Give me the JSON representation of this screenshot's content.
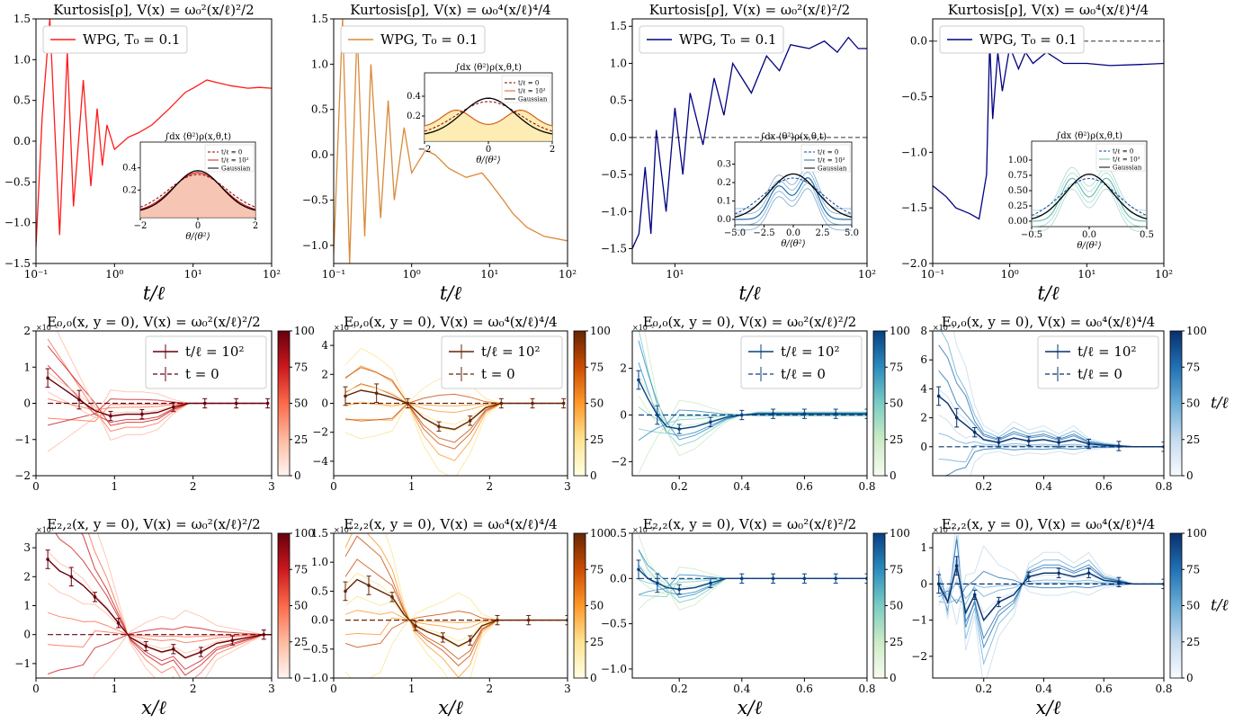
{
  "chart_data": [
    {
      "id": "k1",
      "type": "line",
      "title": "Kurtosis[ρ], V(x) = ω₀²(x/ℓ)²/2",
      "xlabel": "t/ℓ",
      "xscale": "log",
      "xlim": [
        0.1,
        100
      ],
      "ylim": [
        -1.5,
        1.5
      ],
      "xticks": [
        {
          "v": 0.1,
          "label": "10⁻¹"
        },
        {
          "v": 1,
          "label": "10⁰"
        },
        {
          "v": 10,
          "label": "10¹"
        },
        {
          "v": 100,
          "label": "10²"
        }
      ],
      "yticks": [
        {
          "v": -1.5,
          "label": "−1.5"
        },
        {
          "v": -1.0,
          "label": "−1.0"
        },
        {
          "v": -0.5,
          "label": "−0.5"
        },
        {
          "v": 0,
          "label": "0.0"
        },
        {
          "v": 0.5,
          "label": "0.5"
        },
        {
          "v": 1.0,
          "label": "1.0"
        },
        {
          "v": 1.5,
          "label": "1.5"
        }
      ],
      "legend": "WPG, T₀ = 0.1",
      "color": "#ff1a1a",
      "x": [
        0.1,
        0.12,
        0.15,
        0.2,
        0.25,
        0.3,
        0.4,
        0.5,
        0.6,
        0.7,
        0.8,
        1,
        1.5,
        2,
        3,
        5,
        8,
        10,
        15,
        20,
        30,
        50,
        70,
        100
      ],
      "y": [
        -1.3,
        0.3,
        1.5,
        -1.15,
        1.1,
        -0.8,
        0.75,
        -0.55,
        0.4,
        -0.3,
        0.2,
        -0.1,
        0.05,
        0.1,
        0.2,
        0.4,
        0.6,
        0.65,
        0.75,
        0.72,
        0.68,
        0.65,
        0.66,
        0.65
      ]
    },
    {
      "id": "k2",
      "type": "line",
      "title": "Kurtosis[ρ], V(x) = ω₀⁴(x/ℓ)⁴/4",
      "xlabel": "t/ℓ",
      "xscale": "log",
      "xlim": [
        0.1,
        100
      ],
      "ylim": [
        -1.2,
        1.5
      ],
      "xticks": [
        {
          "v": 0.1,
          "label": "10⁻¹"
        },
        {
          "v": 1,
          "label": "10⁰"
        },
        {
          "v": 10,
          "label": "10¹"
        },
        {
          "v": 100,
          "label": "10²"
        }
      ],
      "yticks": [
        {
          "v": -1.0,
          "label": "−1.0"
        },
        {
          "v": -0.5,
          "label": "−0.5"
        },
        {
          "v": 0,
          "label": "0.0"
        },
        {
          "v": 0.5,
          "label": "0.5"
        },
        {
          "v": 1.0,
          "label": "1.0"
        },
        {
          "v": 1.5,
          "label": "1.5"
        }
      ],
      "legend": "WPG, T₀ = 0.1",
      "color": "#d98a3a",
      "x": [
        0.1,
        0.13,
        0.16,
        0.2,
        0.25,
        0.3,
        0.4,
        0.5,
        0.6,
        0.8,
        1,
        1.5,
        2,
        3,
        5,
        8,
        10,
        15,
        20,
        30,
        50,
        100
      ],
      "y": [
        -1.1,
        1.5,
        -1.2,
        1.4,
        -0.9,
        1.0,
        -0.7,
        0.6,
        -0.5,
        0.3,
        -0.2,
        0.05,
        0.0,
        -0.15,
        -0.25,
        -0.2,
        -0.3,
        -0.5,
        -0.65,
        -0.8,
        -0.9,
        -0.95
      ]
    },
    {
      "id": "k3",
      "type": "line",
      "title": "Kurtosis[ρ], V(x) = ω₀²(x/ℓ)²/2",
      "xlabel": "t/ℓ",
      "xscale": "log",
      "xlim": [
        6,
        100
      ],
      "ylim": [
        -1.7,
        1.6
      ],
      "xticks": [
        {
          "v": 10,
          "label": "10¹"
        },
        {
          "v": 100,
          "label": "10²"
        }
      ],
      "yticks": [
        {
          "v": -1.5,
          "label": "−1.5"
        },
        {
          "v": -1.0,
          "label": "−1.0"
        },
        {
          "v": -0.5,
          "label": "−0.5"
        },
        {
          "v": 0,
          "label": "0.0"
        },
        {
          "v": 0.5,
          "label": "0.5"
        },
        {
          "v": 1.0,
          "label": "1.0"
        },
        {
          "v": 1.5,
          "label": "1.5"
        }
      ],
      "legend": "WPG, T₀ = 0.1",
      "color": "#000080",
      "dashed_zero": true,
      "x": [
        6,
        6.5,
        7,
        7.5,
        8,
        9,
        10,
        11,
        12,
        14,
        16,
        18,
        20,
        25,
        30,
        35,
        40,
        50,
        60,
        70,
        80,
        90,
        100
      ],
      "y": [
        -1.5,
        -1.3,
        -0.4,
        -1.3,
        0.1,
        -1.0,
        0.4,
        -0.5,
        0.6,
        -0.1,
        0.8,
        0.3,
        1.0,
        0.6,
        1.1,
        0.9,
        1.25,
        1.2,
        1.3,
        1.15,
        1.35,
        1.2,
        1.2
      ]
    },
    {
      "id": "k4",
      "type": "line",
      "title": "Kurtosis[ρ], V(x) = ω₀⁴(x/ℓ)⁴/4",
      "xlabel": "t/ℓ",
      "xscale": "log",
      "xlim": [
        0.1,
        100
      ],
      "ylim": [
        -2.0,
        0.2
      ],
      "xticks": [
        {
          "v": 0.1,
          "label": "10⁻¹"
        },
        {
          "v": 1,
          "label": "10⁰"
        },
        {
          "v": 10,
          "label": "10¹"
        },
        {
          "v": 100,
          "label": "10²"
        }
      ],
      "yticks": [
        {
          "v": -2.0,
          "label": "−2.0"
        },
        {
          "v": -1.5,
          "label": "−1.5"
        },
        {
          "v": -1.0,
          "label": "−1.0"
        },
        {
          "v": -0.5,
          "label": "−0.5"
        },
        {
          "v": 0,
          "label": "0.0"
        }
      ],
      "legend": "WPG, T₀ = 0.1",
      "color": "#000080",
      "dashed_zero": true,
      "x": [
        0.1,
        0.15,
        0.2,
        0.3,
        0.4,
        0.5,
        0.55,
        0.6,
        0.7,
        0.8,
        1,
        1.3,
        1.6,
        2,
        3,
        5,
        10,
        20,
        50,
        100
      ],
      "y": [
        -1.3,
        -1.4,
        -1.5,
        -1.55,
        -1.6,
        -1.2,
        0.0,
        -0.7,
        -0.1,
        -0.45,
        -0.05,
        -0.25,
        -0.1,
        -0.2,
        -0.1,
        -0.2,
        -0.2,
        -0.22,
        -0.21,
        -0.2
      ]
    },
    {
      "id": "e1",
      "type": "line",
      "title": "E₀,₀(x, y = 0), V(x) = ω₀²(x/ℓ)²/2",
      "xlim": [
        0,
        3
      ],
      "ylim": [
        -2,
        2
      ],
      "multiplier": "×10⁻²",
      "xticks": [
        {
          "v": 0,
          "label": "0"
        },
        {
          "v": 1,
          "label": "1"
        },
        {
          "v": 2,
          "label": "2"
        },
        {
          "v": 3,
          "label": "3"
        }
      ],
      "yticks": [
        {
          "v": -2,
          "label": "−2"
        },
        {
          "v": -1,
          "label": "−1"
        },
        {
          "v": 0,
          "label": "0"
        },
        {
          "v": 1,
          "label": "1"
        },
        {
          "v": 2,
          "label": "2"
        }
      ],
      "cmap": "reds",
      "cbticks": [
        "0",
        "25",
        "50",
        "75",
        "100"
      ],
      "legend": [
        "t/ℓ = 10²",
        "t = 0"
      ],
      "x": [
        0.15,
        0.35,
        0.55,
        0.75,
        0.95,
        1.15,
        1.35,
        1.55,
        1.75,
        1.95,
        2.15,
        2.35,
        2.55,
        2.75,
        2.95
      ],
      "y": [
        0.7,
        0.4,
        0.1,
        -0.2,
        -0.35,
        -0.3,
        -0.3,
        -0.25,
        -0.1,
        0.0,
        0.0,
        0.0,
        0.0,
        0.0,
        0.0
      ]
    },
    {
      "id": "e2",
      "type": "line",
      "title": "E₀,₀(x, y = 0), V(x) = ω₀⁴(x/ℓ)⁴/4",
      "xlim": [
        0,
        3
      ],
      "ylim": [
        -5,
        5
      ],
      "multiplier": "×10⁻³",
      "xticks": [
        {
          "v": 0,
          "label": "0"
        },
        {
          "v": 1,
          "label": "1"
        },
        {
          "v": 2,
          "label": "2"
        },
        {
          "v": 3,
          "label": "3"
        }
      ],
      "yticks": [
        {
          "v": -4,
          "label": "−4"
        },
        {
          "v": -2,
          "label": "−2"
        },
        {
          "v": 0,
          "label": "0"
        },
        {
          "v": 2,
          "label": "2"
        },
        {
          "v": 4,
          "label": "4"
        }
      ],
      "cmap": "oranges",
      "cbticks": [
        "0",
        "25",
        "50",
        "75",
        "100"
      ],
      "legend": [
        "t/ℓ = 10²",
        "t = 0"
      ],
      "x": [
        0.15,
        0.35,
        0.55,
        0.75,
        0.95,
        1.15,
        1.35,
        1.55,
        1.75,
        1.95,
        2.15,
        2.35,
        2.55,
        2.75,
        2.95
      ],
      "y": [
        0.5,
        0.9,
        0.7,
        0.4,
        0.0,
        -1.0,
        -1.6,
        -1.8,
        -1.2,
        -0.3,
        0.0,
        0.0,
        0.0,
        0.0,
        0.0
      ]
    },
    {
      "id": "e3",
      "type": "line",
      "title": "E₀,₀(x, y = 0), V(x) = ω₀²(x/ℓ)²/2",
      "xlim": [
        0.05,
        0.8
      ],
      "ylim": [
        -2.6,
        3.6
      ],
      "multiplier": "×10⁻²",
      "xticks": [
        {
          "v": 0.2,
          "label": "0.2"
        },
        {
          "v": 0.4,
          "label": "0.4"
        },
        {
          "v": 0.6,
          "label": "0.6"
        },
        {
          "v": 0.8,
          "label": "0.8"
        }
      ],
      "yticks": [
        {
          "v": -2,
          "label": "−2"
        },
        {
          "v": 0,
          "label": "0"
        },
        {
          "v": 2,
          "label": "2"
        }
      ],
      "cmap": "gnbu",
      "cbticks": [
        "0",
        "25",
        "50",
        "75",
        "100"
      ],
      "legend": [
        "t/ℓ = 10²",
        "t/ℓ = 0"
      ],
      "x": [
        0.07,
        0.1,
        0.13,
        0.16,
        0.2,
        0.25,
        0.3,
        0.35,
        0.4,
        0.45,
        0.5,
        0.55,
        0.6,
        0.65,
        0.7,
        0.75,
        0.8
      ],
      "y": [
        1.5,
        0.7,
        0.0,
        -0.5,
        -0.6,
        -0.5,
        -0.3,
        -0.1,
        0.0,
        0.05,
        0.05,
        0.05,
        0.05,
        0.05,
        0.05,
        0.05,
        0.05
      ]
    },
    {
      "id": "e4",
      "type": "line",
      "title": "E₀,₀(x, y = 0), V(x) = ω₀⁴(x/ℓ)⁴/4",
      "xlim": [
        0.03,
        0.8
      ],
      "ylim": [
        -2,
        8
      ],
      "multiplier": "×10⁻³",
      "xticks": [
        {
          "v": 0.2,
          "label": "0.2"
        },
        {
          "v": 0.4,
          "label": "0.4"
        },
        {
          "v": 0.6,
          "label": "0.6"
        },
        {
          "v": 0.8,
          "label": "0.8"
        }
      ],
      "yticks": [
        {
          "v": 0,
          "label": "0"
        },
        {
          "v": 2,
          "label": "2"
        },
        {
          "v": 4,
          "label": "4"
        },
        {
          "v": 6,
          "label": "6"
        },
        {
          "v": 8,
          "label": "8"
        }
      ],
      "cmap": "blues",
      "cbticks": [
        "0",
        "25",
        "50",
        "75",
        "100"
      ],
      "cblabel": "t/ℓ",
      "legend": [
        "t/ℓ = 10²",
        "t/ℓ = 0"
      ],
      "x": [
        0.05,
        0.08,
        0.11,
        0.14,
        0.17,
        0.2,
        0.25,
        0.3,
        0.35,
        0.4,
        0.45,
        0.5,
        0.55,
        0.6,
        0.65,
        0.7,
        0.8
      ],
      "y": [
        3.5,
        3.0,
        2.0,
        1.5,
        1.0,
        0.5,
        0.3,
        0.6,
        0.4,
        0.5,
        0.3,
        0.5,
        0.2,
        0.1,
        0.05,
        0.0,
        0.0
      ]
    },
    {
      "id": "f1",
      "type": "line",
      "title": "E₂,₂(x, y = 0), V(x) = ω₀²(x/ℓ)²/2",
      "xlabel": "x/ℓ",
      "xlim": [
        0,
        3
      ],
      "ylim": [
        -1.5,
        3.5
      ],
      "multiplier": "×10¹",
      "xticks": [
        {
          "v": 0,
          "label": "0"
        },
        {
          "v": 1,
          "label": "1"
        },
        {
          "v": 2,
          "label": "2"
        },
        {
          "v": 3,
          "label": "3"
        }
      ],
      "yticks": [
        {
          "v": -1,
          "label": "−1"
        },
        {
          "v": 0,
          "label": "0"
        },
        {
          "v": 1,
          "label": "1"
        },
        {
          "v": 2,
          "label": "2"
        },
        {
          "v": 3,
          "label": "3"
        }
      ],
      "cmap": "reds",
      "cbticks": [
        "0",
        "25",
        "50",
        "75",
        "100"
      ],
      "x": [
        0.15,
        0.3,
        0.45,
        0.6,
        0.75,
        0.9,
        1.05,
        1.2,
        1.4,
        1.6,
        1.75,
        1.9,
        2.1,
        2.3,
        2.5,
        2.7,
        2.9,
        3.0
      ],
      "y": [
        2.6,
        2.2,
        2.0,
        1.7,
        1.3,
        0.9,
        0.4,
        -0.1,
        -0.4,
        -0.6,
        -0.5,
        -0.8,
        -0.6,
        -0.3,
        -0.2,
        -0.1,
        0.0,
        0.0
      ]
    },
    {
      "id": "f2",
      "type": "line",
      "title": "E₂,₂(x, y = 0), V(x) = ω₀⁴(x/ℓ)⁴/4",
      "xlabel": "x/ℓ",
      "xlim": [
        0,
        3
      ],
      "ylim": [
        -1.0,
        1.5
      ],
      "multiplier": "×10¹",
      "xticks": [
        {
          "v": 0,
          "label": "0"
        },
        {
          "v": 1,
          "label": "1"
        },
        {
          "v": 2,
          "label": "2"
        },
        {
          "v": 3,
          "label": "3"
        }
      ],
      "yticks": [
        {
          "v": -1.0,
          "label": "−1.0"
        },
        {
          "v": -0.5,
          "label": "−0.5"
        },
        {
          "v": 0,
          "label": "0.0"
        },
        {
          "v": 0.5,
          "label": "0.5"
        },
        {
          "v": 1.0,
          "label": "1.0"
        },
        {
          "v": 1.5,
          "label": "1.5"
        }
      ],
      "cmap": "oranges",
      "cbticks": [
        "0",
        "25",
        "50",
        "75",
        "100"
      ],
      "x": [
        0.15,
        0.3,
        0.45,
        0.6,
        0.75,
        0.9,
        1.05,
        1.2,
        1.4,
        1.6,
        1.75,
        1.9,
        2.1,
        2.3,
        2.5,
        2.7,
        3.0
      ],
      "y": [
        0.5,
        0.7,
        0.6,
        0.5,
        0.4,
        0.1,
        -0.1,
        -0.2,
        -0.3,
        -0.45,
        -0.35,
        -0.1,
        0.0,
        0.0,
        0.0,
        0.0,
        0.0
      ]
    },
    {
      "id": "f3",
      "type": "line",
      "title": "E₂,₂(x, y = 0), V(x) = ω₀²(x/ℓ)²/2",
      "xlabel": "x/ℓ",
      "xlim": [
        0.05,
        0.8
      ],
      "ylim": [
        -1.1,
        0.5
      ],
      "multiplier": "×10⁻³",
      "xticks": [
        {
          "v": 0.2,
          "label": "0.2"
        },
        {
          "v": 0.4,
          "label": "0.4"
        },
        {
          "v": 0.6,
          "label": "0.6"
        },
        {
          "v": 0.8,
          "label": "0.8"
        }
      ],
      "yticks": [
        {
          "v": -1.0,
          "label": "−1.0"
        },
        {
          "v": -0.5,
          "label": "−0.5"
        },
        {
          "v": 0,
          "label": "0.0"
        },
        {
          "v": 0.5,
          "label": "0.5"
        }
      ],
      "cmap": "gnbu",
      "cbticks": [
        "0",
        "25",
        "50",
        "75",
        "100"
      ],
      "x": [
        0.07,
        0.1,
        0.13,
        0.16,
        0.2,
        0.25,
        0.3,
        0.35,
        0.4,
        0.45,
        0.5,
        0.55,
        0.6,
        0.65,
        0.7,
        0.75,
        0.8
      ],
      "y": [
        0.1,
        0.0,
        -0.05,
        -0.1,
        -0.12,
        -0.1,
        -0.05,
        0.0,
        0.0,
        0.0,
        0.0,
        0.0,
        0.0,
        0.0,
        0.0,
        0.0,
        0.0
      ]
    },
    {
      "id": "f4",
      "type": "line",
      "title": "E₂,₂(x, y = 0), V(x) = ω₀⁴(x/ℓ)⁴/4",
      "xlabel": "x/ℓ",
      "xlim": [
        0.03,
        0.8
      ],
      "ylim": [
        -2.6,
        1.4
      ],
      "multiplier": "×10⁻¹",
      "xticks": [
        {
          "v": 0.2,
          "label": "0.2"
        },
        {
          "v": 0.4,
          "label": "0.4"
        },
        {
          "v": 0.6,
          "label": "0.6"
        },
        {
          "v": 0.8,
          "label": "0.8"
        }
      ],
      "yticks": [
        {
          "v": -2,
          "label": "−2"
        },
        {
          "v": -1,
          "label": "−1"
        },
        {
          "v": 0,
          "label": "0"
        },
        {
          "v": 1,
          "label": "1"
        }
      ],
      "cmap": "blues",
      "cbticks": [
        "0",
        "25",
        "50",
        "75",
        "100"
      ],
      "cblabel": "t/ℓ",
      "x": [
        0.05,
        0.08,
        0.11,
        0.14,
        0.17,
        0.2,
        0.25,
        0.3,
        0.35,
        0.4,
        0.45,
        0.5,
        0.55,
        0.6,
        0.65,
        0.7,
        0.8
      ],
      "y": [
        0.0,
        -0.5,
        0.5,
        -0.8,
        -0.3,
        -1.0,
        -0.5,
        -0.3,
        0.2,
        0.3,
        0.3,
        0.2,
        0.3,
        0.1,
        0.05,
        0.0,
        0.0
      ]
    }
  ],
  "insets": {
    "i1": {
      "title": "∫dx ⟨θ²⟩ρ(x,θ,t)",
      "xlabel": "θ/⟨θ²⟩",
      "xticks": [
        "−2",
        "0",
        "2"
      ],
      "yticks": [
        "0.2",
        "0.4"
      ],
      "legend": [
        "t/ℓ = 0",
        "t/ℓ = 10²",
        "Gaussian"
      ]
    },
    "i2": {
      "title": "∫dx ⟨θ²⟩ρ(x,θ,t)",
      "xlabel": "θ/⟨θ²⟩",
      "xticks": [
        "−2",
        "0",
        "2"
      ],
      "yticks": [
        "0.2",
        "0.4"
      ],
      "legend": [
        "t/ℓ = 0",
        "t/ℓ = 10²",
        "Gaussian"
      ]
    },
    "i3": {
      "title": "∫dx ⟨θ²⟩ρ(x,θ,t)",
      "xlabel": "θ/⟨θ²⟩",
      "xticks": [
        "−5.0",
        "−2.5",
        "0.0",
        "2.5",
        "5.0"
      ],
      "yticks": [
        "0.0",
        "0.1",
        "0.2",
        "0.3"
      ],
      "legend": [
        "t/ℓ = 0",
        "t/ℓ = 10²",
        "Gaussian"
      ]
    },
    "i4": {
      "title": "∫dx ⟨θ²⟩ρ(x,θ,t)",
      "xlabel": "θ/⟨θ²⟩",
      "xticks": [
        "−0.5",
        "0.0",
        "0.5"
      ],
      "yticks": [
        "0.00",
        "0.25",
        "0.50",
        "0.75",
        "1.00"
      ],
      "legend": [
        "t/ℓ = 0",
        "t/ℓ = 10²",
        "Gaussian"
      ]
    }
  },
  "row_labels": {
    "top": "t/ℓ",
    "bottom": "x/ℓ"
  }
}
